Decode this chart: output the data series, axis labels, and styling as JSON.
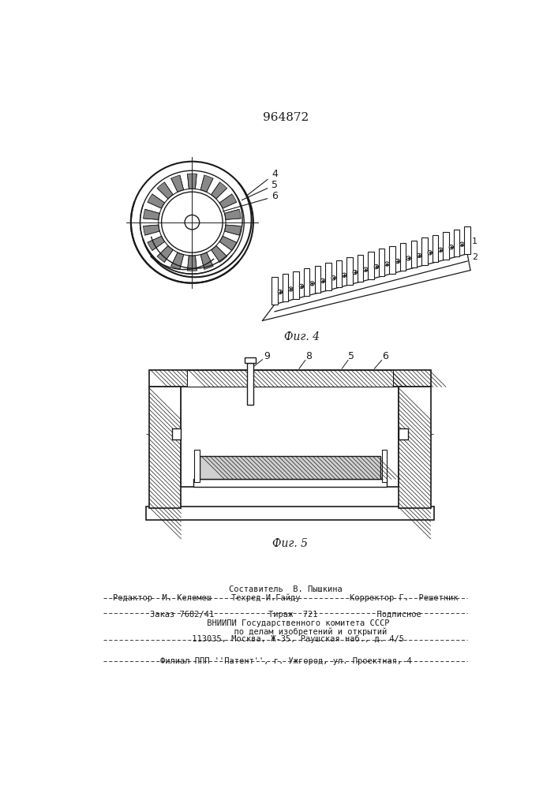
{
  "patent_number": "964872",
  "fig4_label": "Фиг. 4",
  "fig5_label": "Фиг. 5",
  "line_color": "#1a1a1a",
  "footer_lines": [
    "Составитель  В. Пышкина",
    "Редактор  М. Келемеш    Техред И.Гайду          Корректор Г.  Решетник",
    "Заказ 7682/41           Тираж  721            Подписное",
    "     ВНИИПИ Государственного комитета СССР",
    "          по делам изобретений и открытий",
    "     113035, Москва, Ж-35, Раушская наб., д. 4/5",
    "Филиал ППП ''Патент'', г. Ужгород, ул. Проектная, 4"
  ]
}
